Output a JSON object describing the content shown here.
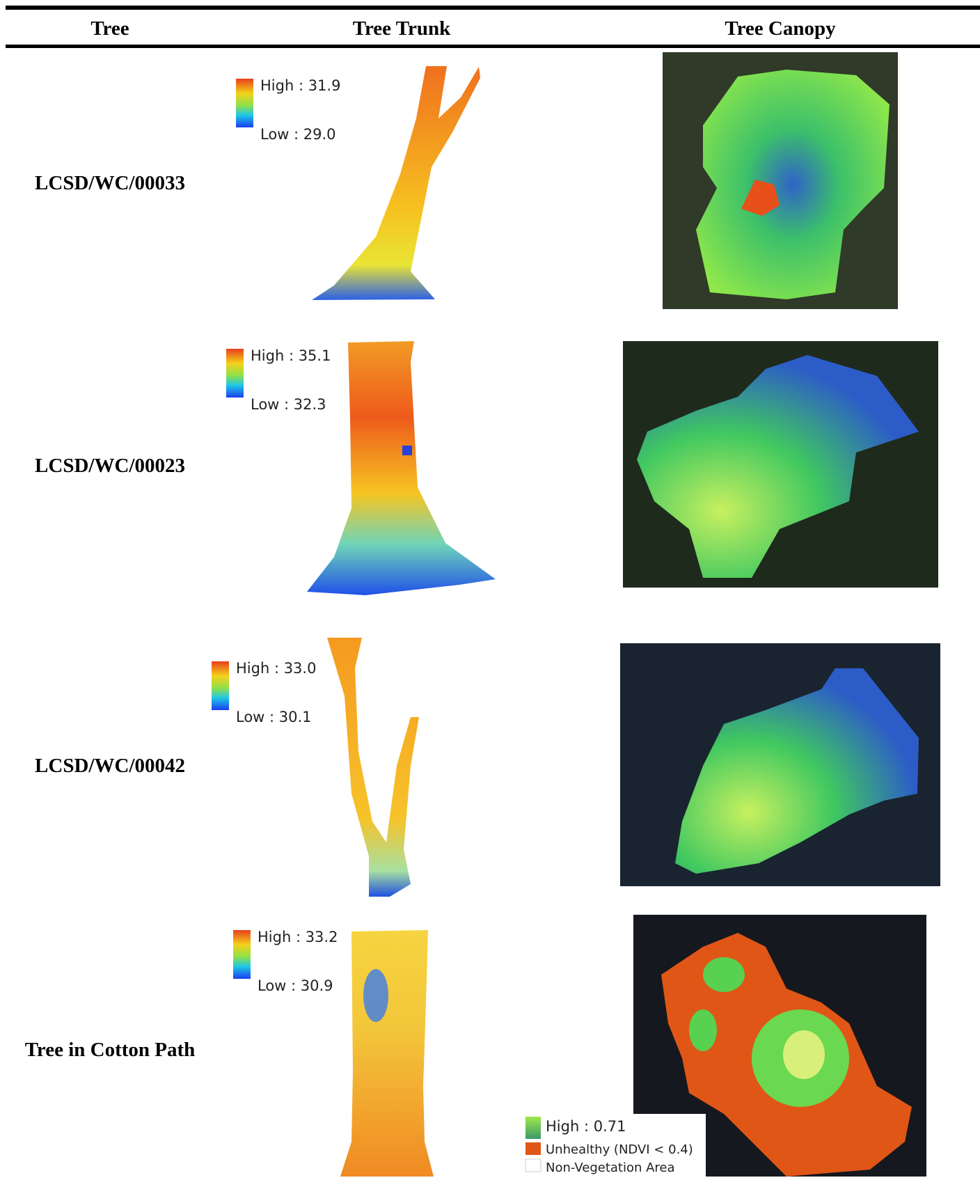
{
  "table": {
    "header": [
      "Tree",
      "Tree Trunk",
      "Tree Canopy"
    ],
    "rows": [
      {
        "tree": "LCSD/WC/00033",
        "trunk_legend": {
          "high": "High : 31.9",
          "low": "Low : 29.0"
        }
      },
      {
        "tree": "LCSD/WC/00023",
        "trunk_legend": {
          "high": "High : 35.1",
          "low": "Low : 32.3"
        }
      },
      {
        "tree": "LCSD/WC/00042",
        "trunk_legend": {
          "high": "High : 33.0",
          "low": "Low : 30.1"
        }
      },
      {
        "tree": "Tree in Cotton Path",
        "trunk_legend": {
          "high": "High : 33.2",
          "low": "Low : 30.9"
        }
      }
    ],
    "canopy_legend": {
      "high": "High : 0.71",
      "unhealthy": "Unhealthy (NDVI < 0.4)",
      "non_vegetation": "Non-Vegetation Area"
    }
  }
}
